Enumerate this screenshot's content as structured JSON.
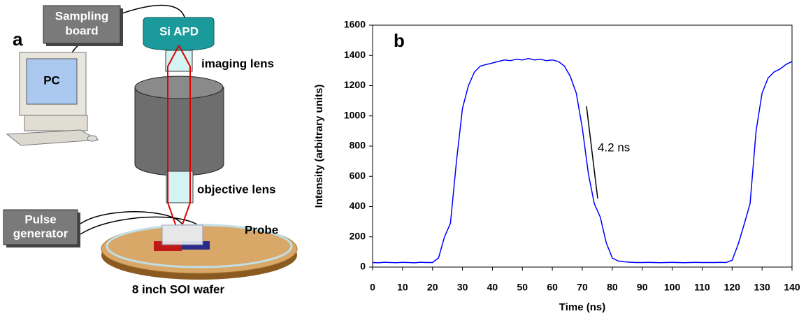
{
  "diagram": {
    "panel_label": "a",
    "sampling_board": [
      "Sampling",
      "board"
    ],
    "detector": "Si APD",
    "computer": "PC",
    "imaging_lens": "imaging lens",
    "objective_lens": "objective lens",
    "pulse_generator": [
      "Pulse",
      "generator"
    ],
    "probe": "Probe",
    "wafer": "8 inch SOI wafer"
  },
  "chart_data": {
    "type": "line",
    "panel_label": "b",
    "x_label": "Time (ns)",
    "y_label": "Intensity (arbitrary units)",
    "annotation": "4.2 ns",
    "color": "#0000ff",
    "x": [
      0,
      2,
      4,
      6,
      8,
      10,
      12,
      14,
      16,
      18,
      20,
      22,
      24,
      26,
      28,
      30,
      32,
      34,
      36,
      38,
      40,
      42,
      44,
      46,
      48,
      50,
      52,
      54,
      56,
      58,
      60,
      62,
      64,
      66,
      68,
      70,
      72,
      74,
      76,
      78,
      80,
      82,
      84,
      86,
      88,
      90,
      92,
      94,
      96,
      98,
      100,
      102,
      104,
      106,
      108,
      110,
      112,
      114,
      116,
      118,
      120,
      122,
      124,
      126,
      128,
      130,
      132,
      134,
      136,
      138,
      140
    ],
    "values": [
      30,
      28,
      32,
      30,
      29,
      31,
      30,
      28,
      32,
      30,
      30,
      60,
      200,
      290,
      700,
      1050,
      1200,
      1290,
      1330,
      1340,
      1350,
      1360,
      1370,
      1365,
      1375,
      1370,
      1380,
      1370,
      1375,
      1365,
      1370,
      1360,
      1330,
      1260,
      1150,
      920,
      620,
      420,
      330,
      160,
      60,
      40,
      35,
      32,
      30,
      30,
      31,
      30,
      29,
      30,
      31,
      30,
      29,
      30,
      31,
      30,
      30,
      30,
      31,
      30,
      45,
      150,
      280,
      420,
      900,
      1150,
      1250,
      1290,
      1310,
      1340,
      1360
    ],
    "xlim": [
      0,
      140
    ],
    "ylim": [
      0,
      1600
    ],
    "xticks": [
      0,
      10,
      20,
      30,
      40,
      50,
      60,
      70,
      80,
      90,
      100,
      110,
      120,
      130,
      140
    ],
    "yticks": [
      0,
      200,
      400,
      600,
      800,
      1000,
      1200,
      1400,
      1600
    ]
  }
}
